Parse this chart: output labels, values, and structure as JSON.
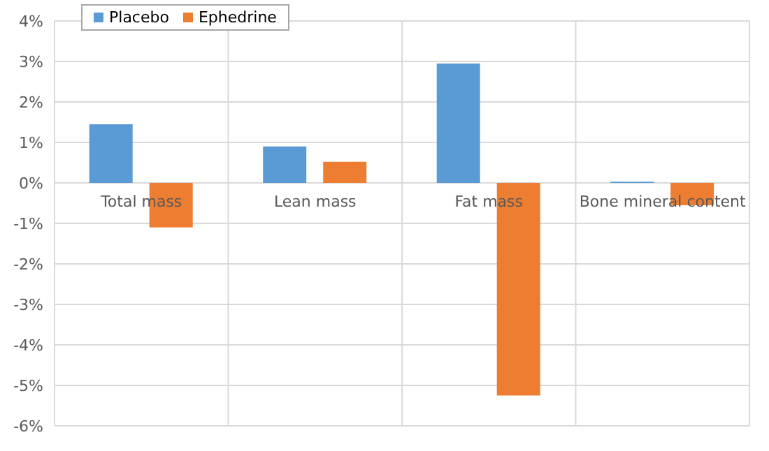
{
  "chart_data": {
    "type": "bar",
    "categories": [
      "Total mass",
      "Lean mass",
      "Fat mass",
      "Bone mineral content"
    ],
    "series": [
      {
        "name": "Placebo",
        "color": "#5b9bd5",
        "values": [
          1.45,
          0.9,
          2.95,
          0.03
        ]
      },
      {
        "name": "Ephedrine",
        "color": "#ed7d31",
        "values": [
          -1.1,
          0.52,
          -5.25,
          -0.55
        ]
      }
    ],
    "ylim": [
      -6,
      4
    ],
    "yticks": [
      {
        "value": -6,
        "label": "-6%"
      },
      {
        "value": -5,
        "label": "-5%"
      },
      {
        "value": -4,
        "label": "-4%"
      },
      {
        "value": -3,
        "label": "-3%"
      },
      {
        "value": -2,
        "label": "-2%"
      },
      {
        "value": -1,
        "label": "-1%"
      },
      {
        "value": 0,
        "label": "0%"
      },
      {
        "value": 1,
        "label": "1%"
      },
      {
        "value": 2,
        "label": "2%"
      },
      {
        "value": 3,
        "label": "3%"
      },
      {
        "value": 4,
        "label": "4%"
      }
    ],
    "grid": true,
    "legend": "top left"
  }
}
